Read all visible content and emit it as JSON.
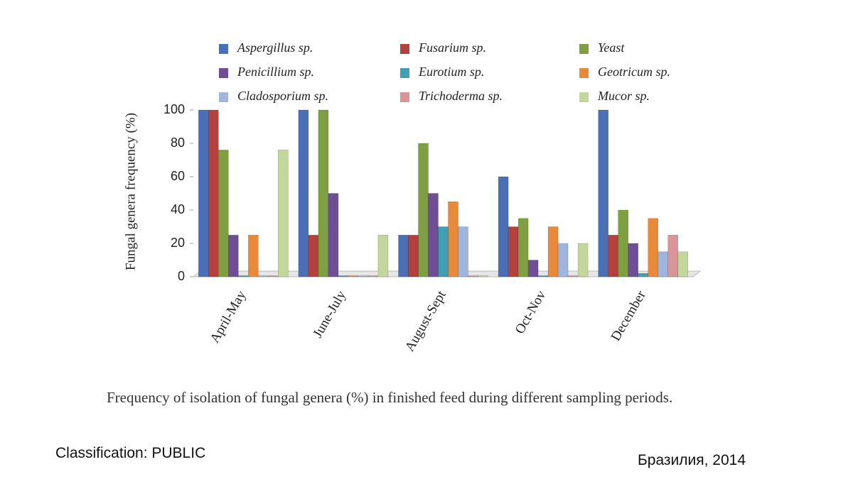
{
  "chart_data": {
    "type": "bar",
    "y_label": "Fungal genera frequency (%)",
    "categories": [
      "April-May",
      "June-July",
      "August-Sept",
      "Oct-Nov",
      "December"
    ],
    "series": [
      {
        "name": "Aspergillus sp.",
        "color": "#4a6fb5",
        "values": [
          100,
          100,
          25,
          60,
          100
        ]
      },
      {
        "name": "Fusarium sp.",
        "color": "#b3413e",
        "values": [
          100,
          25,
          25,
          30,
          25
        ]
      },
      {
        "name": "Yeast",
        "color": "#7fa042",
        "values": [
          76,
          100,
          80,
          35,
          40
        ]
      },
      {
        "name": "Penicillium sp.",
        "color": "#6e4f96",
        "values": [
          25,
          50,
          50,
          10,
          20
        ]
      },
      {
        "name": "Eurotium sp.",
        "color": "#3ea0b4",
        "values": [
          0,
          0,
          30,
          0,
          2
        ]
      },
      {
        "name": "Geotricum sp.",
        "color": "#e98a3a",
        "values": [
          25,
          0,
          45,
          30,
          35
        ]
      },
      {
        "name": "Cladosporium sp.",
        "color": "#9fb5dc",
        "values": [
          0,
          0,
          30,
          20,
          15
        ]
      },
      {
        "name": "Trichoderma sp.",
        "color": "#d99597",
        "values": [
          0,
          0,
          0,
          0,
          25
        ]
      },
      {
        "name": "Mucor sp.",
        "color": "#c3d79b",
        "values": [
          76,
          25,
          0,
          20,
          15
        ]
      }
    ],
    "ylim": [
      0,
      100
    ],
    "yticks": [
      0,
      20,
      40,
      60,
      80,
      100
    ],
    "grid": false
  },
  "caption": "Frequency of isolation of fungal genera (%) in finished feed during different sampling periods.",
  "footer": {
    "classification": "Classification: PUBLIC",
    "location": "Бразилия, 2014"
  }
}
